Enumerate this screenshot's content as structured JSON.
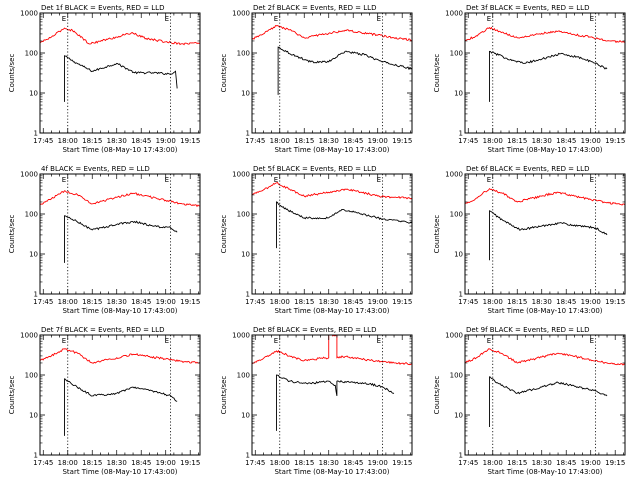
{
  "figure": {
    "xlabel": "Start Time (08-May-10 17:43:00)",
    "ylabel": "Counts/sec",
    "x_tick_labels": [
      "17:45",
      "18:00",
      "18:15",
      "18:30",
      "18:45",
      "19:00",
      "19:15"
    ],
    "y_tick_labels": [
      "1",
      "10",
      "100",
      "1000"
    ],
    "marker_labels": [
      "E",
      "E"
    ],
    "colors": {
      "events": "#000000",
      "lld": "#ff0000",
      "axes": "#000000",
      "background": "#ffffff"
    }
  },
  "chart_data": [
    {
      "type": "line",
      "title": "Det 1f BLACK = Events, RED = LLD",
      "x_unit": "time (HH:MM, 08-May-10)",
      "xlim": [
        "17:43",
        "19:21"
      ],
      "ylim": [
        1,
        1000
      ],
      "y_scale": "log",
      "markers": [
        "18:00",
        "19:03"
      ],
      "series": [
        {
          "name": "Events",
          "color": "#000000",
          "start": "17:58",
          "end": "19:07",
          "x": [
            "17:58",
            "17:58",
            "18:04",
            "18:15",
            "18:30",
            "18:41",
            "18:52",
            "19:03",
            "19:06",
            "19:07"
          ],
          "y": [
            6,
            85,
            60,
            35,
            55,
            32,
            32,
            30,
            35,
            13
          ]
        },
        {
          "name": "LLD",
          "color": "#ff0000",
          "start": "17:43",
          "end": "19:21",
          "x": [
            "17:43",
            "17:50",
            "17:58",
            "18:04",
            "18:13",
            "18:30",
            "18:39",
            "18:48",
            "19:00",
            "19:10",
            "19:21"
          ],
          "y": [
            180,
            250,
            420,
            350,
            170,
            250,
            320,
            230,
            190,
            170,
            180
          ]
        }
      ]
    },
    {
      "type": "line",
      "title": "Det 2f BLACK = Events, RED = LLD",
      "x_unit": "time (HH:MM, 08-May-10)",
      "xlim": [
        "17:43",
        "19:21"
      ],
      "ylim": [
        1,
        1000
      ],
      "y_scale": "log",
      "markers": [
        "18:00",
        "19:03"
      ],
      "series": [
        {
          "name": "Events",
          "color": "#000000",
          "start": "17:59",
          "end": "19:21",
          "x": [
            "17:59",
            "17:59",
            "18:08",
            "18:19",
            "18:30",
            "18:40",
            "18:52",
            "19:03",
            "19:21"
          ],
          "y": [
            9,
            140,
            90,
            60,
            60,
            110,
            90,
            60,
            40
          ]
        },
        {
          "name": "LLD",
          "color": "#ff0000",
          "start": "17:43",
          "end": "19:21",
          "x": [
            "17:43",
            "17:50",
            "17:58",
            "18:06",
            "18:15",
            "18:30",
            "18:40",
            "18:50",
            "19:00",
            "19:10",
            "19:21"
          ],
          "y": [
            220,
            300,
            480,
            380,
            240,
            310,
            370,
            320,
            280,
            240,
            210
          ]
        }
      ]
    },
    {
      "type": "line",
      "title": "Det 3f BLACK = Events, RED = LLD",
      "x_unit": "time (HH:MM, 08-May-10)",
      "xlim": [
        "17:43",
        "19:21"
      ],
      "ylim": [
        1,
        1000
      ],
      "y_scale": "log",
      "markers": [
        "18:00",
        "19:03"
      ],
      "series": [
        {
          "name": "Events",
          "color": "#000000",
          "start": "17:58",
          "end": "19:10",
          "x": [
            "17:58",
            "17:58",
            "18:08",
            "18:19",
            "18:30",
            "18:41",
            "18:52",
            "19:03",
            "19:10"
          ],
          "y": [
            6,
            110,
            75,
            55,
            70,
            95,
            80,
            55,
            40
          ]
        },
        {
          "name": "LLD",
          "color": "#ff0000",
          "start": "17:43",
          "end": "19:21",
          "x": [
            "17:43",
            "17:50",
            "17:58",
            "18:04",
            "18:15",
            "18:30",
            "18:40",
            "18:50",
            "19:00",
            "19:10",
            "19:21"
          ],
          "y": [
            200,
            270,
            430,
            350,
            240,
            310,
            350,
            290,
            250,
            200,
            190
          ]
        }
      ]
    },
    {
      "type": "line",
      "title": "4f BLACK = Events, RED = LLD",
      "x_unit": "time (HH:MM, 08-May-10)",
      "xlim": [
        "17:43",
        "19:21"
      ],
      "ylim": [
        1,
        1000
      ],
      "y_scale": "log",
      "markers": [
        "18:00",
        "19:03"
      ],
      "series": [
        {
          "name": "Events",
          "color": "#000000",
          "start": "17:58",
          "end": "19:07",
          "x": [
            "17:58",
            "17:58",
            "18:04",
            "18:15",
            "18:30",
            "18:41",
            "18:52",
            "19:03",
            "19:07"
          ],
          "y": [
            6,
            90,
            70,
            40,
            55,
            65,
            50,
            45,
            35
          ]
        },
        {
          "name": "LLD",
          "color": "#ff0000",
          "start": "17:43",
          "end": "19:21",
          "x": [
            "17:43",
            "17:50",
            "17:58",
            "18:06",
            "18:15",
            "18:30",
            "18:40",
            "18:50",
            "19:00",
            "19:10",
            "19:21"
          ],
          "y": [
            170,
            240,
            380,
            300,
            180,
            260,
            330,
            270,
            220,
            180,
            160
          ]
        }
      ]
    },
    {
      "type": "line",
      "title": "Det 5f BLACK = Events, RED = LLD",
      "x_unit": "time (HH:MM, 08-May-10)",
      "xlim": [
        "17:43",
        "19:21"
      ],
      "ylim": [
        1,
        1000
      ],
      "y_scale": "log",
      "markers": [
        "18:00",
        "19:03"
      ],
      "series": [
        {
          "name": "Events",
          "color": "#000000",
          "start": "17:58",
          "end": "19:21",
          "x": [
            "17:58",
            "17:58",
            "18:04",
            "18:15",
            "18:30",
            "18:38",
            "18:50",
            "19:03",
            "19:21"
          ],
          "y": [
            14,
            200,
            130,
            80,
            80,
            130,
            100,
            75,
            60
          ]
        },
        {
          "name": "LLD",
          "color": "#ff0000",
          "start": "17:43",
          "end": "19:21",
          "x": [
            "17:43",
            "17:50",
            "17:58",
            "18:06",
            "18:15",
            "18:30",
            "18:40",
            "18:50",
            "19:00",
            "19:10",
            "19:21"
          ],
          "y": [
            300,
            400,
            600,
            420,
            280,
            350,
            420,
            350,
            280,
            260,
            250
          ]
        }
      ]
    },
    {
      "type": "line",
      "title": "Det 6f BLACK = Events, RED = LLD",
      "x_unit": "time (HH:MM, 08-May-10)",
      "xlim": [
        "17:43",
        "19:21"
      ],
      "ylim": [
        1,
        1000
      ],
      "y_scale": "log",
      "markers": [
        "18:00",
        "19:03"
      ],
      "series": [
        {
          "name": "Events",
          "color": "#000000",
          "start": "17:58",
          "end": "19:10",
          "x": [
            "17:58",
            "17:58",
            "18:06",
            "18:17",
            "18:30",
            "18:41",
            "18:52",
            "19:03",
            "19:10"
          ],
          "y": [
            7,
            120,
            70,
            40,
            50,
            60,
            50,
            45,
            30
          ]
        },
        {
          "name": "LLD",
          "color": "#ff0000",
          "start": "17:43",
          "end": "19:21",
          "x": [
            "17:43",
            "17:50",
            "17:58",
            "18:06",
            "18:15",
            "18:30",
            "18:40",
            "18:50",
            "19:00",
            "19:10",
            "19:21"
          ],
          "y": [
            180,
            250,
            430,
            330,
            200,
            280,
            350,
            280,
            230,
            190,
            170
          ]
        }
      ]
    },
    {
      "type": "line",
      "title": "Det 7f BLACK = Events, RED = LLD",
      "x_unit": "time (HH:MM, 08-May-10)",
      "xlim": [
        "17:43",
        "19:21"
      ],
      "ylim": [
        1,
        1000
      ],
      "y_scale": "log",
      "markers": [
        "18:00",
        "19:03"
      ],
      "series": [
        {
          "name": "Events",
          "color": "#000000",
          "start": "17:58",
          "end": "19:07",
          "x": [
            "17:58",
            "17:58",
            "18:04",
            "18:15",
            "18:30",
            "18:40",
            "18:52",
            "19:03",
            "19:07"
          ],
          "y": [
            3,
            80,
            55,
            30,
            35,
            50,
            40,
            30,
            22
          ]
        },
        {
          "name": "LLD",
          "color": "#ff0000",
          "start": "17:43",
          "end": "19:21",
          "x": [
            "17:43",
            "17:50",
            "17:58",
            "18:06",
            "18:15",
            "18:30",
            "18:40",
            "18:50",
            "19:00",
            "19:10",
            "19:21"
          ],
          "y": [
            230,
            300,
            450,
            350,
            200,
            270,
            330,
            290,
            250,
            220,
            200
          ]
        }
      ]
    },
    {
      "type": "line",
      "title": "Det 8f BLACK = Events, RED = LLD",
      "x_unit": "time (HH:MM, 08-May-10)",
      "xlim": [
        "17:43",
        "19:21"
      ],
      "ylim": [
        1,
        1000
      ],
      "y_scale": "log",
      "markers": [
        "18:00",
        "19:03"
      ],
      "series": [
        {
          "name": "Events",
          "color": "#000000",
          "start": "17:58",
          "end": "19:10",
          "x": [
            "17:58",
            "17:58",
            "18:06",
            "18:17",
            "18:30",
            "18:34",
            "18:35",
            "18:35",
            "18:45",
            "18:55",
            "19:03",
            "19:10"
          ],
          "y": [
            4,
            100,
            70,
            60,
            70,
            55,
            30,
            70,
            65,
            60,
            50,
            35
          ]
        },
        {
          "name": "LLD",
          "color": "#ff0000",
          "start": "17:43",
          "end": "19:21",
          "x": [
            "17:43",
            "17:50",
            "17:58",
            "18:06",
            "18:15",
            "18:25",
            "18:30",
            "18:30",
            "18:35",
            "18:35",
            "18:40",
            "18:50",
            "19:00",
            "19:10",
            "19:21"
          ],
          "y": [
            190,
            260,
            400,
            300,
            230,
            260,
            270,
            1000,
            1000,
            270,
            290,
            250,
            220,
            200,
            190
          ]
        }
      ]
    },
    {
      "type": "line",
      "title": "Det 9f BLACK = Events, RED = LLD",
      "x_unit": "time (HH:MM, 08-May-10)",
      "xlim": [
        "17:43",
        "19:21"
      ],
      "ylim": [
        1,
        1000
      ],
      "y_scale": "log",
      "markers": [
        "18:00",
        "19:03"
      ],
      "series": [
        {
          "name": "Events",
          "color": "#000000",
          "start": "17:58",
          "end": "19:10",
          "x": [
            "17:58",
            "17:58",
            "18:04",
            "18:15",
            "18:30",
            "18:40",
            "18:52",
            "19:03",
            "19:10"
          ],
          "y": [
            5,
            90,
            60,
            35,
            50,
            65,
            50,
            40,
            30
          ]
        },
        {
          "name": "LLD",
          "color": "#ff0000",
          "start": "17:43",
          "end": "19:21",
          "x": [
            "17:43",
            "17:50",
            "17:58",
            "18:06",
            "18:15",
            "18:30",
            "18:40",
            "18:50",
            "19:00",
            "19:10",
            "19:21"
          ],
          "y": [
            200,
            270,
            450,
            340,
            200,
            280,
            350,
            290,
            240,
            200,
            180
          ]
        }
      ]
    }
  ]
}
